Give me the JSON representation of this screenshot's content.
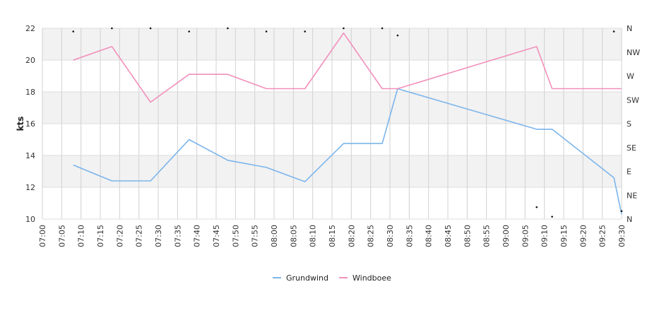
{
  "chart_data": {
    "type": "line",
    "ylabel": "kts",
    "ylim": [
      10,
      22
    ],
    "y_ticks": [
      10,
      12,
      14,
      16,
      18,
      20,
      22
    ],
    "y_tick_labels": [
      "10",
      "12",
      "14",
      "16",
      "18",
      "20",
      "22"
    ],
    "x_range": [
      "07:00",
      "09:30"
    ],
    "x_ticks": [
      "07:00",
      "07:05",
      "07:10",
      "07:15",
      "07:20",
      "07:25",
      "07:30",
      "07:35",
      "07:40",
      "07:45",
      "07:50",
      "07:55",
      "08:00",
      "08:05",
      "08:10",
      "08:15",
      "08:20",
      "08:25",
      "08:30",
      "08:35",
      "08:40",
      "08:45",
      "08:50",
      "08:55",
      "09:00",
      "09:05",
      "09:10",
      "09:15",
      "09:20",
      "09:25",
      "09:30"
    ],
    "right_axis_labels": [
      "N",
      "NW",
      "W",
      "SW",
      "S",
      "SE",
      "E",
      "NE",
      "N"
    ],
    "grid": true,
    "alternating_bands": true,
    "legend_position": "bottom-center",
    "series": [
      {
        "name": "Grundwind",
        "color": "#7cb5ec",
        "x": [
          "07:08",
          "07:18",
          "07:28",
          "07:38",
          "07:48",
          "07:58",
          "08:08",
          "08:18",
          "08:28",
          "08:32",
          "09:08",
          "09:12",
          "09:28",
          "09:30"
        ],
        "y": [
          13.4,
          12.4,
          12.4,
          15.0,
          13.7,
          13.25,
          12.35,
          14.75,
          14.75,
          18.2,
          15.65,
          15.65,
          12.6,
          10.3
        ]
      },
      {
        "name": "Windboee",
        "color": "#f28fbc",
        "x": [
          "07:08",
          "07:18",
          "07:28",
          "07:38",
          "07:48",
          "07:58",
          "08:08",
          "08:18",
          "08:28",
          "08:32",
          "09:08",
          "09:12",
          "09:30"
        ],
        "y": [
          20.0,
          20.85,
          17.35,
          19.1,
          19.1,
          18.2,
          18.2,
          21.7,
          18.2,
          18.2,
          20.85,
          18.2,
          18.2
        ]
      }
    ],
    "direction_markers": {
      "x": [
        "07:08",
        "07:18",
        "07:28",
        "07:38",
        "07:48",
        "07:58",
        "08:08",
        "08:18",
        "08:28",
        "08:32",
        "09:08",
        "09:12",
        "09:28",
        "09:30"
      ],
      "y": [
        21.8,
        22.0,
        22.0,
        21.8,
        22.0,
        21.8,
        21.8,
        22.0,
        22.0,
        21.55,
        10.75,
        10.15,
        21.8,
        10.5
      ]
    }
  }
}
